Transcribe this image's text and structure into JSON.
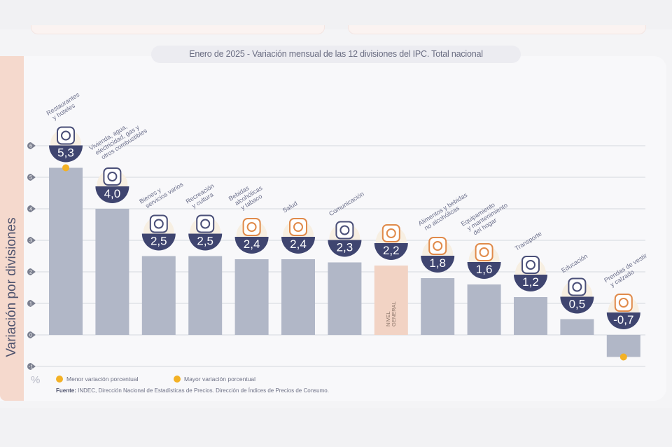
{
  "title": "Enero de 2025 - Variación mensual de las 12 divisiones del IPC. Total nacional",
  "side_label": "Variación por divisiones",
  "unit_symbol": "%",
  "legend": {
    "min_label": "Menor variación porcentual",
    "max_label": "Mayor variación porcentual",
    "marker_color": "#f3b125"
  },
  "source": {
    "prefix": "Fuente:",
    "text": " INDEC, Dirección Nacional de Estadísticas de Precios. Dirección de Índices de Precios de Consumo."
  },
  "colors": {
    "bar": "#b1b7c7",
    "general_bar": "#f2d3c4",
    "badge": "#3f4570",
    "label_text": "#6a6e8a",
    "grid": "#dcdde3",
    "tick_bubble": "#7b7f8f"
  },
  "chart_data": {
    "type": "bar",
    "title": "Enero de 2025 - Variación mensual de las 12 divisiones del IPC. Total nacional",
    "ylabel": "Variación por divisiones",
    "yunit": "%",
    "ylim": [
      -1,
      6
    ],
    "yticks": [
      "-1",
      "0",
      "1",
      "2",
      "3",
      "4",
      "5",
      "6"
    ],
    "grid": true,
    "legend_position": "bottom-left",
    "categories": [
      {
        "name": "Restaurantes y hoteles",
        "lines": [
          "Restaurantes",
          "y hoteles"
        ],
        "value": 5.3,
        "label": "5,3",
        "marker": "max",
        "icon": "restaurant-icon"
      },
      {
        "name": "Vivienda, agua, electricidad, gas y otros combustibles",
        "lines": [
          "Vivienda, agua,",
          "electricidad, gas y",
          "otros combustibles"
        ],
        "value": 4.0,
        "label": "4,0",
        "icon": "lightbulb-icon"
      },
      {
        "name": "Bienes y servicios varios",
        "lines": [
          "Bienes y",
          "servicios varios"
        ],
        "value": 2.5,
        "label": "2,5",
        "icon": "scissors-icon"
      },
      {
        "name": "Recreación y cultura",
        "lines": [
          "Recreación",
          "y cultura"
        ],
        "value": 2.5,
        "label": "2,5",
        "icon": "umbrella-icon"
      },
      {
        "name": "Bebidas alcohólicas y tabaco",
        "lines": [
          "Bebidas",
          "alcohólicas",
          "y tabaco"
        ],
        "value": 2.4,
        "label": "2,4",
        "icon": "bottle-icon"
      },
      {
        "name": "Salud",
        "lines": [
          "Salud"
        ],
        "value": 2.4,
        "label": "2,4",
        "icon": "medical-cross-icon"
      },
      {
        "name": "Comunicación",
        "lines": [
          "Comunicación"
        ],
        "value": 2.3,
        "label": "2,3",
        "icon": "phone-icon"
      },
      {
        "name": "Nivel general",
        "lines": [],
        "bar_text": [
          "NIVEL",
          "GENERAL"
        ],
        "value": 2.2,
        "label": "2,2",
        "general": true,
        "icon": "shopping-basket-icon"
      },
      {
        "name": "Alimentos y bebidas no alcohólicas",
        "lines": [
          "Alimentos y bebidas",
          "no alcohólicas"
        ],
        "value": 1.8,
        "label": "1,8",
        "icon": "food-icon"
      },
      {
        "name": "Equipamiento y mantenimiento del hogar",
        "lines": [
          "Equipamiento",
          "y mantenimiento",
          "del hogar"
        ],
        "value": 1.6,
        "label": "1,6",
        "icon": "home-appliance-icon"
      },
      {
        "name": "Transporte",
        "lines": [
          "Transporte"
        ],
        "value": 1.2,
        "label": "1,2",
        "icon": "car-icon"
      },
      {
        "name": "Educación",
        "lines": [
          "Educación"
        ],
        "value": 0.5,
        "label": "0,5",
        "icon": "notebook-icon"
      },
      {
        "name": "Prendas de vestir y calzado",
        "lines": [
          "Prendas de vestir",
          "y calzado"
        ],
        "value": -0.7,
        "label": "-0,7",
        "marker": "min",
        "icon": "tshirt-icon"
      }
    ]
  }
}
